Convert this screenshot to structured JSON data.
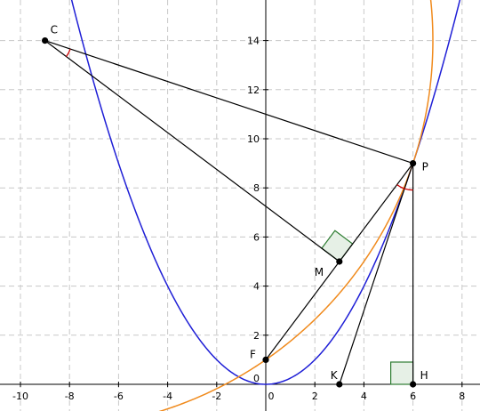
{
  "colors": {
    "parabola_blue": "#1f1fd6",
    "curve_orange": "#f08a1c",
    "segment": "#000000",
    "angle_marker": "#cc0000",
    "right_angle": "#2e7d32",
    "right_angle_fill": "#e6f0e6",
    "grid": "#c8c8c8"
  },
  "chart_data": {
    "type": "diagram",
    "xlim": [
      -10.8,
      8.8
    ],
    "ylim": [
      -0.7,
      15.6
    ],
    "x_ticks": [
      -10,
      -8,
      -6,
      -4,
      -2,
      0,
      2,
      4,
      6,
      8
    ],
    "y_ticks": [
      2,
      4,
      6,
      8,
      10,
      12,
      14
    ],
    "grid": true,
    "points": [
      {
        "label": "C",
        "x": -9,
        "y": 14
      },
      {
        "label": "P",
        "x": 6,
        "y": 9
      },
      {
        "label": "M",
        "x": 3,
        "y": 5
      },
      {
        "label": "F",
        "x": 0,
        "y": 1
      },
      {
        "label": "K",
        "x": 3,
        "y": 0
      },
      {
        "label": "H",
        "x": 6,
        "y": 0
      }
    ],
    "segments": [
      [
        "C",
        "P"
      ],
      [
        "C",
        "M"
      ],
      [
        "F",
        "P"
      ],
      [
        "P",
        "K"
      ],
      [
        "P",
        "H"
      ]
    ],
    "curves": [
      {
        "kind": "parabola",
        "equation": "y = x^2/4",
        "color": "blue"
      },
      {
        "kind": "circle",
        "center": [
          -9,
          14
        ],
        "radius": 15.811,
        "color": "orange"
      }
    ],
    "right_angles": [
      "M",
      "H"
    ],
    "angle_marks": [
      "C",
      "P"
    ]
  }
}
